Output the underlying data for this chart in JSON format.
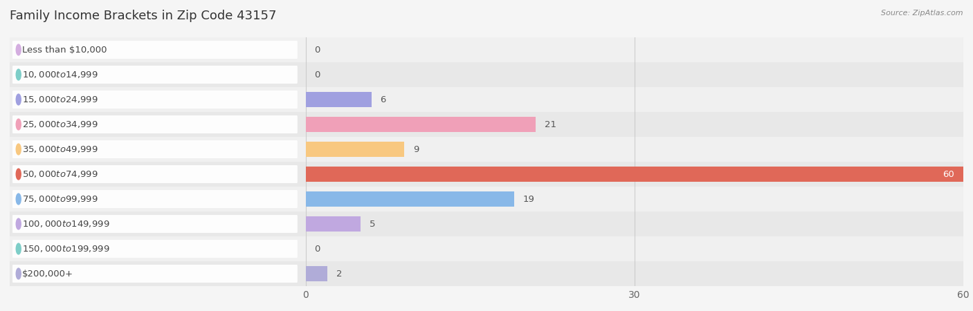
{
  "title": "Family Income Brackets in Zip Code 43157",
  "source": "Source: ZipAtlas.com",
  "categories": [
    "Less than $10,000",
    "$10,000 to $14,999",
    "$15,000 to $24,999",
    "$25,000 to $34,999",
    "$35,000 to $49,999",
    "$50,000 to $74,999",
    "$75,000 to $99,999",
    "$100,000 to $149,999",
    "$150,000 to $199,999",
    "$200,000+"
  ],
  "values": [
    0,
    0,
    6,
    21,
    9,
    60,
    19,
    5,
    0,
    2
  ],
  "bar_colors": [
    "#d4aee0",
    "#7ecec8",
    "#a0a0e0",
    "#f0a0b8",
    "#f8c880",
    "#e06858",
    "#88b8e8",
    "#c0a8e0",
    "#7ecec8",
    "#b0acd8"
  ],
  "bg_color": "#f5f5f5",
  "row_colors": [
    "#f0f0f0",
    "#e8e8e8"
  ],
  "xlim": [
    0,
    60
  ],
  "xticks": [
    0,
    30,
    60
  ],
  "title_fontsize": 13,
  "label_fontsize": 9.5,
  "value_fontsize": 9.5,
  "bar_height": 0.62
}
